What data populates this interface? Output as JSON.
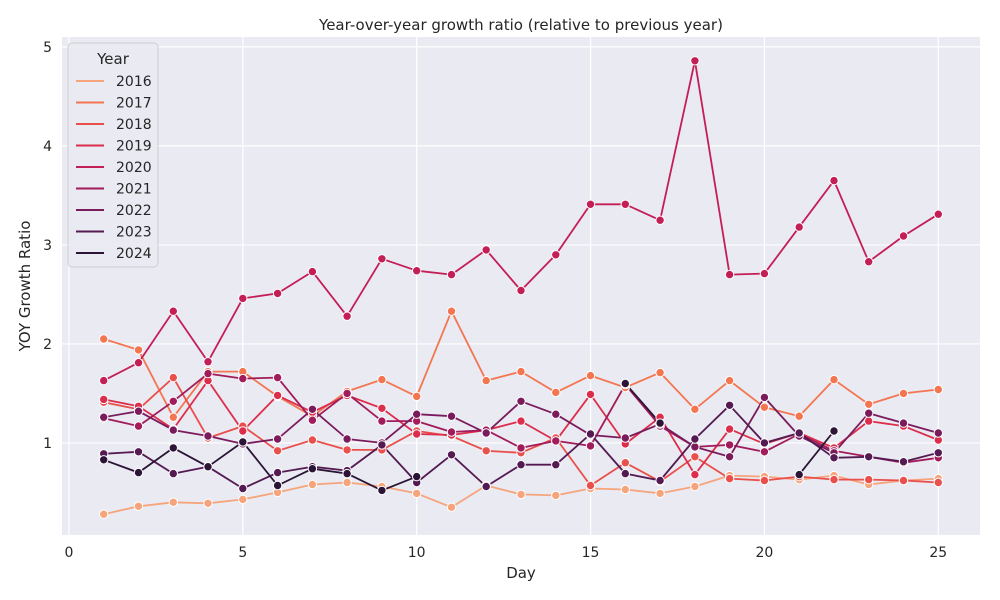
{
  "chart_data": {
    "type": "line",
    "title": "Year-over-year growth ratio (relative to previous year)",
    "xlabel": "Day",
    "ylabel": "YOY Growth Ratio",
    "xlim": [
      -0.2,
      26.2
    ],
    "ylim": [
      0.07,
      5.1
    ],
    "xticks": [
      0,
      5,
      10,
      15,
      20,
      25
    ],
    "yticks": [
      1,
      2,
      3,
      4,
      5
    ],
    "grid": true,
    "legend": {
      "title": "Year",
      "position": "top-left"
    },
    "x": [
      1,
      2,
      3,
      4,
      5,
      6,
      7,
      8,
      9,
      10,
      11,
      12,
      13,
      14,
      15,
      16,
      17,
      18,
      19,
      20,
      21,
      22,
      23,
      24,
      25
    ],
    "series": [
      {
        "name": "2016",
        "color": "#f6a47c",
        "values": [
          0.28,
          0.36,
          0.4,
          0.39,
          0.43,
          0.5,
          0.58,
          0.6,
          0.56,
          0.49,
          0.35,
          0.57,
          0.48,
          0.47,
          0.54,
          0.53,
          0.49,
          0.56,
          0.67,
          0.66,
          0.63,
          0.67,
          0.58,
          0.62,
          0.64
        ]
      },
      {
        "name": "2017",
        "color": "#f37651",
        "values": [
          2.05,
          1.94,
          1.26,
          1.72,
          1.72,
          1.47,
          1.27,
          1.52,
          1.64,
          1.47,
          2.33,
          1.63,
          1.72,
          1.51,
          1.68,
          1.56,
          1.71,
          1.34,
          1.63,
          1.36,
          1.27,
          1.64,
          1.39,
          1.5,
          1.54
        ]
      },
      {
        "name": "2018",
        "color": "#e94f4b",
        "values": [
          1.41,
          1.34,
          1.66,
          1.05,
          1.17,
          0.92,
          1.03,
          0.93,
          0.93,
          1.12,
          1.07,
          0.92,
          0.9,
          1.05,
          0.57,
          0.8,
          0.61,
          0.86,
          0.64,
          0.62,
          0.66,
          0.63,
          0.63,
          0.62,
          0.6
        ]
      },
      {
        "name": "2019",
        "color": "#dc2e4c",
        "values": [
          1.44,
          1.37,
          1.14,
          1.63,
          1.12,
          1.48,
          1.31,
          1.48,
          1.35,
          1.09,
          1.08,
          1.13,
          1.22,
          1.02,
          1.49,
          0.99,
          1.26,
          0.68,
          1.14,
          0.99,
          1.1,
          0.95,
          1.22,
          1.17,
          1.03
        ]
      },
      {
        "name": "2020",
        "color": "#c41e56",
        "values": [
          1.63,
          1.81,
          2.33,
          1.82,
          2.46,
          2.51,
          2.73,
          2.28,
          2.86,
          2.74,
          2.7,
          2.95,
          2.54,
          2.9,
          3.41,
          3.41,
          3.25,
          4.86,
          2.7,
          2.71,
          3.18,
          3.65,
          2.83,
          3.09,
          3.31
        ]
      },
      {
        "name": "2021",
        "color": "#a21b5a",
        "values": [
          1.25,
          1.17,
          1.42,
          1.7,
          1.65,
          1.66,
          1.23,
          1.5,
          1.22,
          1.22,
          1.11,
          1.13,
          0.95,
          1.02,
          0.97,
          1.59,
          1.17,
          0.96,
          0.98,
          0.91,
          1.09,
          0.92,
          0.86,
          0.8,
          0.85
        ]
      },
      {
        "name": "2022",
        "color": "#7a1c5c",
        "values": [
          1.26,
          1.32,
          1.13,
          1.07,
          0.99,
          1.04,
          1.34,
          1.04,
          1.0,
          1.29,
          1.27,
          1.1,
          1.42,
          1.29,
          1.08,
          1.05,
          1.19,
          0.96,
          0.86,
          1.46,
          1.07,
          0.9,
          1.3,
          1.2,
          1.1
        ]
      },
      {
        "name": "2023",
        "color": "#541a52",
        "values": [
          0.89,
          0.91,
          0.69,
          0.76,
          0.54,
          0.7,
          0.76,
          0.72,
          0.98,
          0.6,
          0.88,
          0.56,
          0.78,
          0.78,
          1.09,
          0.69,
          0.62,
          1.04,
          1.38,
          1.0,
          1.1,
          0.85,
          0.86,
          0.81,
          0.9
        ]
      },
      {
        "name": "2024",
        "color": "#2b1436",
        "values": [
          0.83,
          0.7,
          0.95,
          0.76,
          1.01,
          0.57,
          0.74,
          0.69,
          0.52,
          0.66,
          null,
          null,
          null,
          null,
          null,
          1.6,
          1.2,
          null,
          null,
          null,
          0.68,
          1.12,
          null,
          null,
          null
        ]
      }
    ]
  }
}
